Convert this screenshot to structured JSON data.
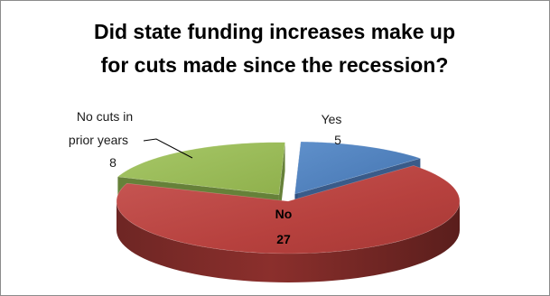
{
  "chart_data": {
    "type": "pie",
    "title_lines": [
      "Did state funding increases make up",
      "for cuts made since the recession?"
    ],
    "categories": [
      "Yes",
      "No",
      "No cuts in prior years"
    ],
    "values": [
      5,
      27,
      8
    ],
    "label_lines": [
      [
        "Yes",
        "5"
      ],
      [
        "No",
        "27"
      ],
      [
        "No cuts in",
        "prior years",
        "8"
      ]
    ],
    "colors": [
      "#4f81bd",
      "#c0504d",
      "#9bbb59"
    ],
    "style": "3d-exploded",
    "legend": "none"
  }
}
